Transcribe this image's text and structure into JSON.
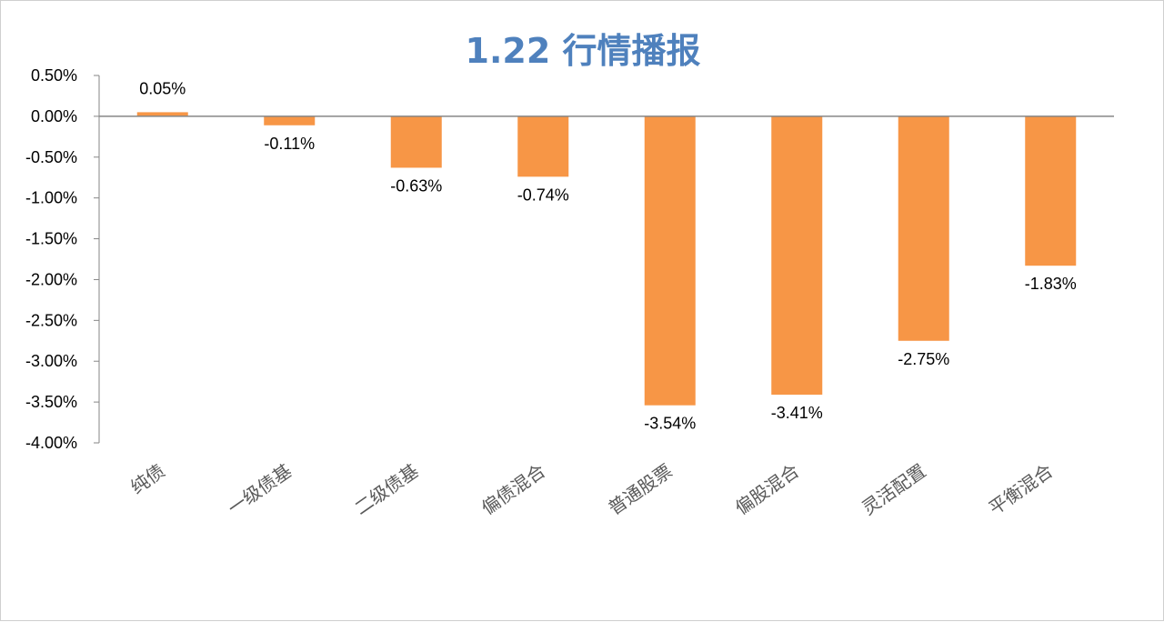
{
  "chart_data": {
    "type": "bar",
    "title": "1.22 行情播报",
    "categories": [
      "纯债",
      "一级债基",
      "二级债基",
      "偏债混合",
      "普通股票",
      "偏股混合",
      "灵活配置",
      "平衡混合"
    ],
    "values": [
      0.05,
      -0.11,
      -0.63,
      -0.74,
      -3.54,
      -3.41,
      -2.75,
      -1.83
    ],
    "data_labels": [
      "0.05%",
      "-0.11%",
      "-0.63%",
      "-0.74%",
      "-3.54%",
      "-3.41%",
      "-2.75%",
      "-1.83%"
    ],
    "yticks": [
      0.5,
      0,
      -0.5,
      -1,
      -1.5,
      -2,
      -2.5,
      -3,
      -3.5,
      -4
    ],
    "ytick_labels": [
      "0.50%",
      "0.00%",
      "-0.50%",
      "-1.00%",
      "-1.50%",
      "-2.00%",
      "-2.50%",
      "-3.00%",
      "-3.50%",
      "-4.00%"
    ],
    "ylim": [
      -4,
      0.5
    ],
    "bar_color": "#f79646",
    "title_color": "#4f81bd",
    "legend": "none",
    "grid": false
  }
}
